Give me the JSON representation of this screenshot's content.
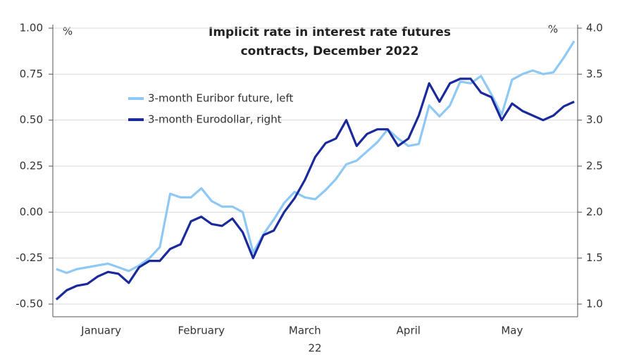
{
  "chart_data": {
    "type": "line",
    "title": [
      "Implicit rate in interest rate futures",
      "contracts, December 2022"
    ],
    "y_unit": "%",
    "y2_unit": "%",
    "xlabel": "22",
    "x": [
      2,
      5,
      8,
      11,
      14,
      17,
      20,
      23,
      26,
      29,
      32,
      35,
      38,
      41,
      44,
      47,
      50,
      53,
      56,
      59,
      62,
      65,
      68,
      71,
      74,
      77,
      80,
      83,
      86,
      89,
      92,
      95,
      98,
      101,
      104,
      107,
      110,
      113,
      116,
      119,
      122,
      125,
      128,
      131,
      134,
      137,
      140,
      143,
      146,
      149,
      152
    ],
    "xlim": [
      1,
      153
    ],
    "xticks": [
      {
        "value": 15,
        "label": "January"
      },
      {
        "value": 44,
        "label": "February"
      },
      {
        "value": 74,
        "label": "March"
      },
      {
        "value": 104,
        "label": "April"
      },
      {
        "value": 134,
        "label": "May"
      }
    ],
    "ylim": [
      -0.5,
      1.0
    ],
    "yticks": [
      {
        "value": 1.0,
        "label": "1.00"
      },
      {
        "value": 0.75,
        "label": "0.75"
      },
      {
        "value": 0.5,
        "label": "0.50"
      },
      {
        "value": 0.25,
        "label": "0.25"
      },
      {
        "value": 0,
        "label": "0.00"
      },
      {
        "value": -0.25,
        "label": "-0.25"
      },
      {
        "value": -0.5,
        "label": "-0.50"
      }
    ],
    "y2lim": [
      1.0,
      4.0
    ],
    "y2ticks": [
      {
        "value": 1.0,
        "label": "1.0"
      },
      {
        "value": 1.5,
        "label": "1.5"
      },
      {
        "value": 2.0,
        "label": "2.0"
      },
      {
        "value": 2.5,
        "label": "2.5"
      },
      {
        "value": 3.0,
        "label": "3.0"
      },
      {
        "value": 3.5,
        "label": "3.5"
      },
      {
        "value": 4.0,
        "label": "4.0"
      }
    ],
    "grid": true,
    "series": [
      {
        "name": "3-month Euribor future, left",
        "color": "#8ec8f5",
        "axis": "y",
        "values": [
          -0.31,
          -0.33,
          -0.31,
          -0.3,
          -0.29,
          -0.28,
          -0.3,
          -0.32,
          -0.29,
          -0.25,
          -0.19,
          0.1,
          0.08,
          0.08,
          0.13,
          0.06,
          0.03,
          0.03,
          0.0,
          -0.22,
          -0.12,
          -0.04,
          0.05,
          0.11,
          0.08,
          0.07,
          0.12,
          0.18,
          0.26,
          0.28,
          0.33,
          0.38,
          0.45,
          0.4,
          0.36,
          0.37,
          0.58,
          0.52,
          0.58,
          0.71,
          0.7,
          0.74,
          0.64,
          0.53,
          0.72,
          0.75,
          0.77,
          0.75,
          0.76,
          0.84,
          0.93
        ]
      },
      {
        "name": "3-month Eurodollar, right",
        "color": "#1a2a9c",
        "axis": "y2",
        "values": [
          1.05,
          1.15,
          1.2,
          1.22,
          1.3,
          1.35,
          1.33,
          1.23,
          1.4,
          1.47,
          1.47,
          1.6,
          1.65,
          1.9,
          1.95,
          1.87,
          1.85,
          1.93,
          1.78,
          1.5,
          1.75,
          1.8,
          2.0,
          2.15,
          2.35,
          2.6,
          2.75,
          2.8,
          3.0,
          2.72,
          2.85,
          2.9,
          2.9,
          2.72,
          2.8,
          3.05,
          3.4,
          3.2,
          3.4,
          3.45,
          3.45,
          3.3,
          3.25,
          3.0,
          3.18,
          3.1,
          3.05,
          3.0,
          3.05,
          3.15,
          3.2
        ]
      }
    ]
  }
}
